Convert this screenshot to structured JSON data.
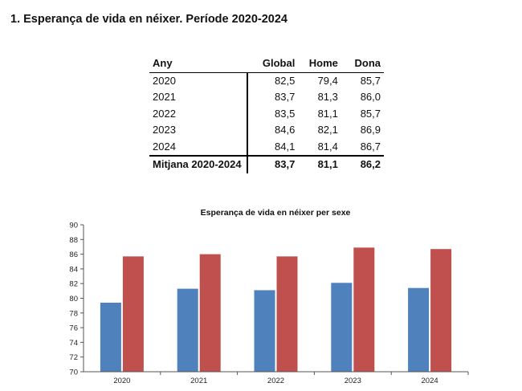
{
  "page_title": "1.  Esperança de vida en néixer. Període 2020-2024",
  "table": {
    "headers": [
      "Any",
      "Global",
      "Home",
      "Dona"
    ],
    "rows": [
      {
        "year": "2020",
        "global": "82,5",
        "home": "79,4",
        "dona": "85,7"
      },
      {
        "year": "2021",
        "global": "83,7",
        "home": "81,3",
        "dona": "86,0"
      },
      {
        "year": "2022",
        "global": "83,5",
        "home": "81,1",
        "dona": "85,7"
      },
      {
        "year": "2023",
        "global": "84,6",
        "home": "82,1",
        "dona": "86,9"
      },
      {
        "year": "2024",
        "global": "84,1",
        "home": "81,4",
        "dona": "86,7"
      }
    ],
    "average": {
      "label": "Mitjana 2020-2024",
      "global": "83,7",
      "home": "81,1",
      "dona": "86,2"
    }
  },
  "chart_data": {
    "type": "bar",
    "title": "Esperança de vida en néixer per sexe",
    "categories": [
      "2020",
      "2021",
      "2022",
      "2023",
      "2024"
    ],
    "series": [
      {
        "name": "Home",
        "color": "#4f81bd",
        "values": [
          79.4,
          81.3,
          81.1,
          82.1,
          81.4
        ]
      },
      {
        "name": "Dona",
        "color": "#c0504d",
        "values": [
          85.7,
          86.0,
          85.7,
          86.9,
          86.7
        ]
      }
    ],
    "ylim": [
      70,
      90
    ],
    "yticks": [
      "70",
      "72",
      "74",
      "76",
      "78",
      "80",
      "82",
      "84",
      "86",
      "88",
      "90"
    ],
    "xlabel": "",
    "ylabel": "",
    "grid": false,
    "legend": "none"
  }
}
